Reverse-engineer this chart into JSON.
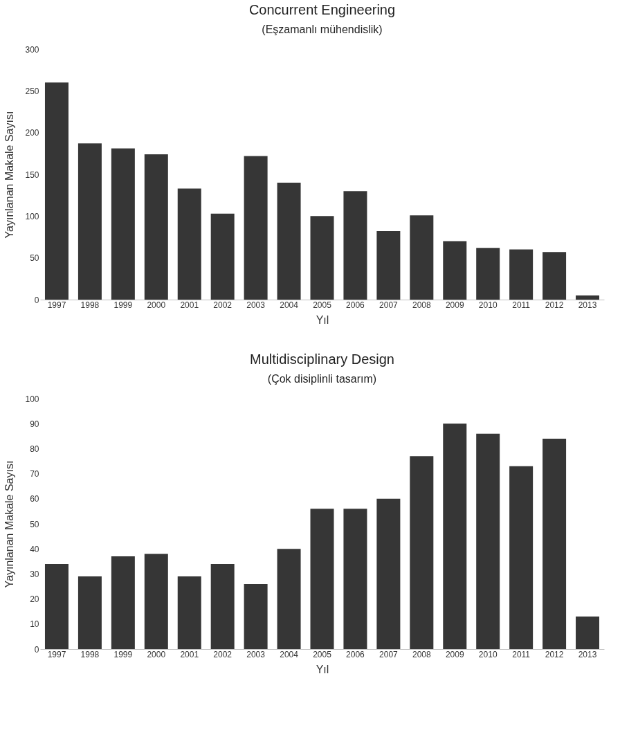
{
  "chart_data": [
    {
      "type": "bar",
      "title": "Concurrent Engineering",
      "subtitle": "(Eşzamanlı mühendislik)",
      "xlabel": "Yıl",
      "ylabel": "Yayınlanan Makale Sayısı",
      "categories": [
        "1997",
        "1998",
        "1999",
        "2000",
        "2001",
        "2002",
        "2003",
        "2004",
        "2005",
        "2006",
        "2007",
        "2008",
        "2009",
        "2010",
        "2011",
        "2012",
        "2013"
      ],
      "values": [
        260,
        187,
        181,
        174,
        133,
        103,
        172,
        140,
        100,
        130,
        82,
        101,
        70,
        62,
        60,
        57,
        5
      ],
      "color": "#363636",
      "ylim": [
        0,
        300
      ],
      "yticks": [
        0,
        50,
        100,
        150,
        200,
        250,
        300
      ],
      "grid": false
    },
    {
      "type": "bar",
      "title": "Multidisciplinary Design",
      "subtitle": "(Çok disiplinli tasarım)",
      "xlabel": "Yıl",
      "ylabel": "Yayınlanan Makale Sayısı",
      "categories": [
        "1997",
        "1998",
        "1999",
        "2000",
        "2001",
        "2002",
        "2003",
        "2004",
        "2005",
        "2006",
        "2007",
        "2008",
        "2009",
        "2010",
        "2011",
        "2012",
        "2013"
      ],
      "values": [
        34,
        29,
        37,
        38,
        29,
        34,
        26,
        40,
        56,
        56,
        60,
        77,
        90,
        86,
        73,
        84,
        13
      ],
      "color": "#363636",
      "ylim": [
        0,
        100
      ],
      "yticks": [
        0,
        10,
        20,
        30,
        40,
        50,
        60,
        70,
        80,
        90,
        100
      ],
      "grid": false
    }
  ]
}
